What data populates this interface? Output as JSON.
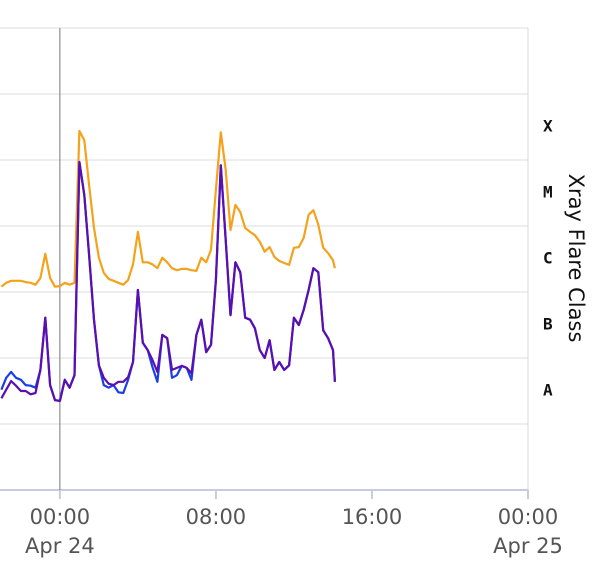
{
  "chart_data": {
    "type": "line",
    "y2label": "Xray Flare Class",
    "x": [
      -3.0,
      -2.75,
      -2.5,
      -2.25,
      -2.0,
      -1.75,
      -1.5,
      -1.25,
      -1.0,
      -0.75,
      -0.5,
      -0.25,
      0,
      0.25,
      0.5,
      0.75,
      1.0,
      1.25,
      1.5,
      1.75,
      2.0,
      2.25,
      2.5,
      2.75,
      3.0,
      3.25,
      3.5,
      3.75,
      4.0,
      4.25,
      4.5,
      4.75,
      5.0,
      5.25,
      5.5,
      5.75,
      6.0,
      6.25,
      6.5,
      6.75,
      7.0,
      7.25,
      7.5,
      7.75,
      8.0,
      8.25,
      8.5,
      8.75,
      9.0,
      9.25,
      9.5,
      9.75,
      10.0,
      10.25,
      10.5,
      10.75,
      11.0,
      11.25,
      11.5,
      11.75,
      12.0,
      12.25,
      12.5,
      12.75,
      13.0,
      13.25,
      13.5,
      13.75,
      14.0,
      14.1
    ],
    "series": [
      {
        "color": "#f5a21b",
        "values": [
          -5.92,
          -5.86,
          -5.83,
          -5.83,
          -5.83,
          -5.85,
          -5.86,
          -5.89,
          -5.79,
          -5.42,
          -5.79,
          -5.92,
          -5.91,
          -5.86,
          -5.89,
          -5.86,
          -3.56,
          -3.7,
          -4.38,
          -5.03,
          -5.48,
          -5.71,
          -5.8,
          -5.83,
          -5.86,
          -5.89,
          -5.82,
          -5.58,
          -5.09,
          -5.55,
          -5.55,
          -5.58,
          -5.64,
          -5.48,
          -5.55,
          -5.64,
          -5.67,
          -5.65,
          -5.65,
          -5.67,
          -5.68,
          -5.48,
          -5.55,
          -5.36,
          -4.45,
          -3.58,
          -4.15,
          -5.06,
          -4.68,
          -4.79,
          -5.03,
          -5.09,
          -5.14,
          -5.24,
          -5.39,
          -5.32,
          -5.47,
          -5.53,
          -5.56,
          -5.59,
          -5.33,
          -5.32,
          -5.18,
          -4.83,
          -4.76,
          -4.98,
          -5.33,
          -5.41,
          -5.52,
          -5.64
        ]
      },
      {
        "color": "#1a3de8",
        "values": [
          -7.48,
          -7.3,
          -7.21,
          -7.3,
          -7.33,
          -7.41,
          -7.42,
          -7.45,
          -7.18,
          -6.39,
          -7.41,
          -7.64,
          -7.65,
          -7.33,
          -7.45,
          -7.26,
          -4.03,
          -4.53,
          -5.44,
          -6.42,
          -7.11,
          -7.41,
          -7.45,
          -7.41,
          -7.52,
          -7.53,
          -7.33,
          -7.06,
          -5.97,
          -6.77,
          -6.88,
          -7.14,
          -7.36,
          -6.65,
          -6.7,
          -7.3,
          -7.26,
          -7.12,
          -7.15,
          -7.33,
          -6.65,
          -6.42,
          -6.91,
          -6.8,
          -5.82,
          -4.08,
          -5.21,
          -6.35,
          -5.55,
          -5.7,
          -6.39,
          -6.42,
          -6.55,
          -6.88,
          -7.0,
          -6.73,
          -7.18,
          -7.06,
          -7.18,
          -7.11,
          -6.39,
          -6.5,
          -6.27,
          -5.97,
          -5.64,
          -5.7,
          -6.58,
          -6.7,
          -6.88,
          -7.36
        ]
      },
      {
        "color": "#5a0fb0",
        "values": [
          -7.61,
          -7.48,
          -7.35,
          -7.42,
          -7.5,
          -7.5,
          -7.55,
          -7.53,
          -7.18,
          -6.39,
          -7.41,
          -7.64,
          -7.65,
          -7.33,
          -7.45,
          -7.26,
          -4.03,
          -4.53,
          -5.44,
          -6.42,
          -7.11,
          -7.3,
          -7.39,
          -7.41,
          -7.36,
          -7.36,
          -7.29,
          -7.06,
          -5.97,
          -6.77,
          -6.88,
          -7.03,
          -7.21,
          -6.65,
          -6.7,
          -7.18,
          -7.15,
          -7.12,
          -7.15,
          -7.23,
          -6.65,
          -6.42,
          -6.91,
          -6.8,
          -5.82,
          -4.08,
          -5.21,
          -6.35,
          -5.55,
          -5.7,
          -6.39,
          -6.42,
          -6.55,
          -6.88,
          -7.0,
          -6.73,
          -7.18,
          -7.06,
          -7.18,
          -7.11,
          -6.39,
          -6.5,
          -6.27,
          -5.97,
          -5.64,
          -5.7,
          -6.58,
          -6.7,
          -6.88,
          -7.36
        ]
      }
    ],
    "xlim": [
      -3.07,
      24
    ],
    "xticks": [
      {
        "value": 0,
        "label": "00:00"
      },
      {
        "value": 8,
        "label": "08:00"
      },
      {
        "value": 16,
        "label": "16:00"
      },
      {
        "value": 24,
        "label": "00:00"
      }
    ],
    "xdates": [
      {
        "value": 0,
        "label": "Apr 24"
      },
      {
        "value": 24,
        "label": "Apr 25"
      }
    ],
    "ylim": [
      -9,
      -2
    ],
    "yticks": [
      -9,
      -8,
      -7,
      -6,
      -5,
      -4,
      -3,
      -2
    ],
    "y2lim": [
      -9,
      -2
    ],
    "y2ticks": [
      {
        "value": -7.5,
        "label": "A"
      },
      {
        "value": -6.5,
        "label": "B"
      },
      {
        "value": -5.5,
        "label": "C"
      },
      {
        "value": -4.5,
        "label": "M"
      },
      {
        "value": -3.5,
        "label": "X"
      }
    ],
    "grid": true
  }
}
